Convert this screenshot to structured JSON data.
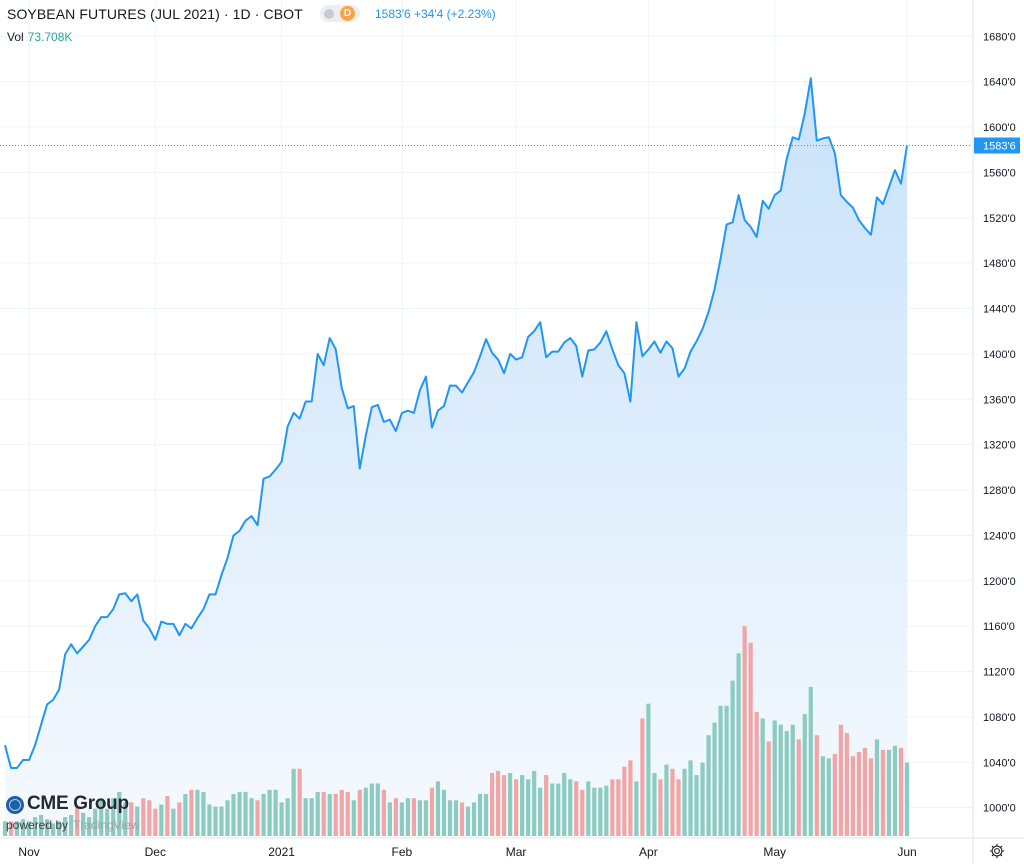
{
  "header": {
    "symbol_title": "SOYBEAN FUTURES (JUL 2021) · 1D · CBOT",
    "badge_letter": "D",
    "last_quote": "1583'6 +34'4 (+2.23%)",
    "volume_label": "Vol",
    "volume_value": "73.708K"
  },
  "branding": {
    "logo_text": "CME Group",
    "powered_by": "powered by",
    "powered_by_brand": "TradingView"
  },
  "settings_icon": "gear-icon",
  "colors": {
    "line": "#2196f3",
    "area_top": "#c9e2fa",
    "area_bottom": "#f5f9fe",
    "volume_up": "#8ccbc0",
    "volume_down": "#f0a6a6",
    "grid": "#f0f3fa",
    "axis_text": "#131722",
    "price_label_bg": "#2196f3"
  },
  "chart_data": {
    "type": "area",
    "title": "SOYBEAN FUTURES (JUL 2021) · 1D · CBOT",
    "ylim": [
      975,
      1712
    ],
    "y_ticks": [
      "1000'0",
      "1040'0",
      "1080'0",
      "1120'0",
      "1160'0",
      "1200'0",
      "1240'0",
      "1280'0",
      "1320'0",
      "1360'0",
      "1400'0",
      "1440'0",
      "1480'0",
      "1520'0",
      "1560'0",
      "1600'0",
      "1640'0",
      "1680'0"
    ],
    "y_tick_values": [
      1000,
      1040,
      1080,
      1120,
      1160,
      1200,
      1240,
      1280,
      1320,
      1360,
      1400,
      1440,
      1480,
      1520,
      1560,
      1600,
      1640,
      1680
    ],
    "x_tick_labels": [
      "Nov",
      "Dec",
      "2021",
      "Feb",
      "Mar",
      "Apr",
      "May",
      "Jun"
    ],
    "x_tick_index": [
      4,
      25,
      46,
      66,
      85,
      107,
      128,
      150
    ],
    "last_price_value": 1583.75,
    "last_price_label": "1583'6",
    "grid": true,
    "series": [
      {
        "type": "line",
        "values": [
          1055,
          1035,
          1035,
          1042,
          1042,
          1055,
          1073,
          1091,
          1095,
          1104,
          1135,
          1144,
          1136,
          1142,
          1148,
          1160,
          1168,
          1168,
          1175,
          1188,
          1189,
          1182,
          1188,
          1165,
          1158,
          1148,
          1164,
          1162,
          1162,
          1152,
          1162,
          1158,
          1167,
          1175,
          1188,
          1188,
          1205,
          1220,
          1240,
          1244,
          1253,
          1257,
          1249,
          1290,
          1292,
          1298,
          1305,
          1336,
          1348,
          1343,
          1358,
          1358,
          1400,
          1390,
          1414,
          1404,
          1370,
          1352,
          1354,
          1299,
          1328,
          1353,
          1355,
          1340,
          1342,
          1332,
          1348,
          1350,
          1348,
          1368,
          1380,
          1335,
          1350,
          1354,
          1372,
          1372,
          1366,
          1375,
          1384,
          1398,
          1413,
          1401,
          1395,
          1383,
          1400,
          1395,
          1397,
          1415,
          1420,
          1428,
          1397,
          1402,
          1402,
          1410,
          1414,
          1407,
          1380,
          1403,
          1404,
          1410,
          1420,
          1404,
          1390,
          1383,
          1358,
          1428,
          1398,
          1404,
          1411,
          1401,
          1411,
          1405,
          1380,
          1387,
          1402,
          1411,
          1422,
          1437,
          1457,
          1484,
          1514,
          1516,
          1540,
          1518,
          1512,
          1503,
          1535,
          1528,
          1540,
          1544,
          1572,
          1591,
          1589,
          1612,
          1643,
          1588,
          1590,
          1591,
          1577,
          1540,
          1534,
          1529,
          1518,
          1511,
          1505,
          1538,
          1532,
          1547,
          1562,
          1550,
          1583.75
        ]
      },
      {
        "type": "volume",
        "values": [
          7,
          7,
          7,
          8,
          7,
          9,
          10,
          8,
          6,
          7,
          9,
          10,
          14,
          11,
          9,
          13,
          18,
          13,
          18,
          21,
          16,
          16,
          14,
          18,
          17,
          13,
          15,
          19,
          13,
          16,
          20,
          22,
          22,
          21,
          15,
          14,
          14,
          17,
          20,
          21,
          21,
          18,
          17,
          20,
          22,
          22,
          16,
          18,
          32,
          32,
          18,
          18,
          21,
          21,
          20,
          20,
          22,
          21,
          17,
          22,
          23,
          25,
          25,
          22,
          16,
          18,
          16,
          18,
          18,
          17,
          17,
          23,
          26,
          22,
          17,
          17,
          16,
          14,
          16,
          20,
          20,
          30,
          31,
          29,
          30,
          27,
          29,
          27,
          31,
          23,
          29,
          25,
          25,
          30,
          27,
          26,
          22,
          26,
          23,
          23,
          24,
          27,
          27,
          33,
          36,
          26,
          56,
          63,
          30,
          27,
          34,
          32,
          27,
          32,
          36,
          29,
          35,
          48,
          54,
          62,
          62,
          74,
          87,
          100,
          92,
          59,
          56,
          45,
          55,
          53,
          50,
          53,
          46,
          58,
          71,
          48,
          38,
          37,
          39,
          53,
          49,
          38,
          40,
          42,
          37,
          46,
          41,
          41,
          43,
          42,
          35
        ]
      }
    ]
  }
}
